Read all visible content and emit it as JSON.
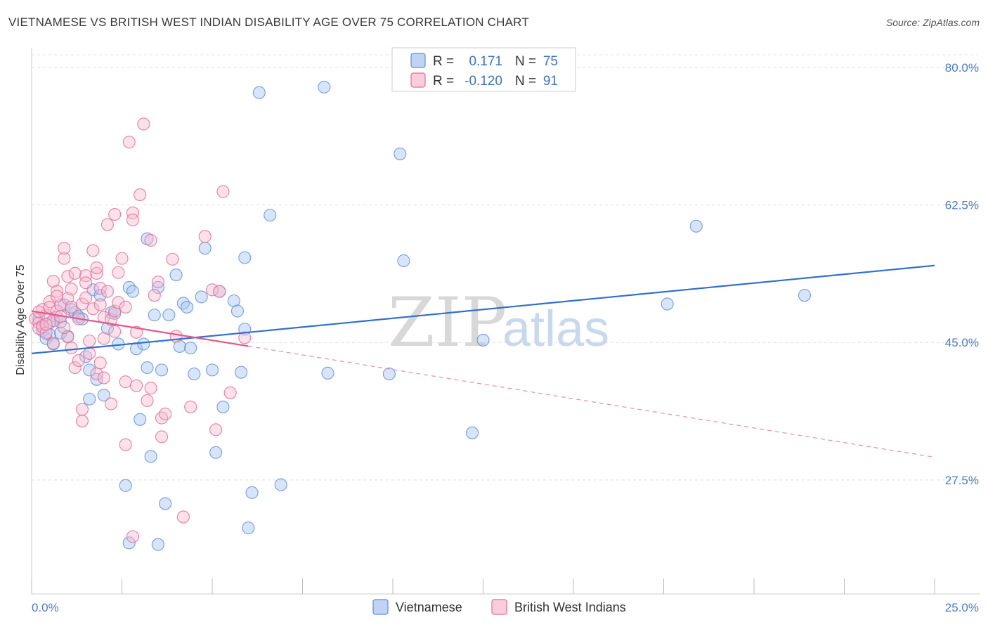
{
  "title": "VIETNAMESE VS BRITISH WEST INDIAN DISABILITY AGE OVER 75 CORRELATION CHART",
  "source": "Source: ZipAtlas.com",
  "watermark": {
    "zip": "ZIP",
    "atlas": "atlas"
  },
  "legend": {
    "r_label": "R =",
    "n_label": "N =",
    "rows": [
      {
        "r": "0.171",
        "n": "75",
        "color": "#8fb4ea"
      },
      {
        "r": "-0.120",
        "n": "91",
        "color": "#f4a7bf"
      }
    ]
  },
  "chart_data": {
    "type": "scatter",
    "title": "VIETNAMESE VS BRITISH WEST INDIAN DISABILITY AGE OVER 75 CORRELATION CHART",
    "xlabel": "",
    "ylabel": "Disability Age Over 75",
    "xlim": [
      0,
      25
    ],
    "ylim": [
      13,
      82.5
    ],
    "x_tick_labels": [
      "0.0%",
      "25.0%"
    ],
    "y_ticks": [
      27.5,
      45.0,
      62.5,
      80.0
    ],
    "y_tick_labels": [
      "27.5%",
      "45.0%",
      "62.5%",
      "80.0%"
    ],
    "grid": true,
    "legend_position": "top-center",
    "series": [
      {
        "name": "Vietnamese",
        "color": "#5b8fdc",
        "fill": "#a9c6f0",
        "r": 0.171,
        "n": 75,
        "trend": {
          "x": [
            0,
            25
          ],
          "y": [
            43.6,
            54.8
          ],
          "dashed_from": null
        },
        "points": [
          [
            0.2,
            48.0
          ],
          [
            0.3,
            47.2
          ],
          [
            0.3,
            46.5
          ],
          [
            0.4,
            45.5
          ],
          [
            0.5,
            46.0
          ],
          [
            0.6,
            44.8
          ],
          [
            0.7,
            48.2
          ],
          [
            0.8,
            47.6
          ],
          [
            0.9,
            49.8
          ],
          [
            1.0,
            45.8
          ],
          [
            1.1,
            49.2
          ],
          [
            1.2,
            48.8
          ],
          [
            1.3,
            48.3
          ],
          [
            1.4,
            48.0
          ],
          [
            1.5,
            43.2
          ],
          [
            1.6,
            41.5
          ],
          [
            1.6,
            37.8
          ],
          [
            1.7,
            51.7
          ],
          [
            1.8,
            40.3
          ],
          [
            1.9,
            51.0
          ],
          [
            2.0,
            38.3
          ],
          [
            2.1,
            46.8
          ],
          [
            2.2,
            48.8
          ],
          [
            2.3,
            48.7
          ],
          [
            2.4,
            44.8
          ],
          [
            2.6,
            26.8
          ],
          [
            2.7,
            19.5
          ],
          [
            2.7,
            52.0
          ],
          [
            2.8,
            51.5
          ],
          [
            2.9,
            44.2
          ],
          [
            3.0,
            35.2
          ],
          [
            3.1,
            44.8
          ],
          [
            3.2,
            41.8
          ],
          [
            3.2,
            58.2
          ],
          [
            3.3,
            30.5
          ],
          [
            3.4,
            48.5
          ],
          [
            3.5,
            52.0
          ],
          [
            3.5,
            19.3
          ],
          [
            3.6,
            41.5
          ],
          [
            3.7,
            24.5
          ],
          [
            3.8,
            48.5
          ],
          [
            4.0,
            53.6
          ],
          [
            4.1,
            44.5
          ],
          [
            4.2,
            50.0
          ],
          [
            4.3,
            49.5
          ],
          [
            4.4,
            44.3
          ],
          [
            4.5,
            41.0
          ],
          [
            4.7,
            50.8
          ],
          [
            4.8,
            57.0
          ],
          [
            5.0,
            41.5
          ],
          [
            5.1,
            31.0
          ],
          [
            5.2,
            51.5
          ],
          [
            5.3,
            36.8
          ],
          [
            5.6,
            50.3
          ],
          [
            5.7,
            49.0
          ],
          [
            5.8,
            41.2
          ],
          [
            5.9,
            46.7
          ],
          [
            5.9,
            55.8
          ],
          [
            6.0,
            21.4
          ],
          [
            6.1,
            25.9
          ],
          [
            6.3,
            76.8
          ],
          [
            6.6,
            61.2
          ],
          [
            6.9,
            26.9
          ],
          [
            8.1,
            77.5
          ],
          [
            8.2,
            41.1
          ],
          [
            9.9,
            41.0
          ],
          [
            10.2,
            69.0
          ],
          [
            10.3,
            55.4
          ],
          [
            12.2,
            33.5
          ],
          [
            12.5,
            45.3
          ],
          [
            17.6,
            49.9
          ],
          [
            18.4,
            59.8
          ],
          [
            21.4,
            51.0
          ],
          [
            0.5,
            47.5
          ],
          [
            0.8,
            46.2
          ]
        ]
      },
      {
        "name": "British West Indians",
        "color": "#e56b96",
        "fill": "#f7bccf",
        "r": -0.12,
        "n": 91,
        "trend": {
          "x": [
            0,
            25
          ],
          "y": [
            49.0,
            30.4
          ],
          "dashed_from": 6.0
        },
        "points": [
          [
            0.1,
            48.0
          ],
          [
            0.2,
            47.5
          ],
          [
            0.2,
            46.8
          ],
          [
            0.3,
            49.2
          ],
          [
            0.3,
            47.0
          ],
          [
            0.4,
            48.5
          ],
          [
            0.4,
            46.2
          ],
          [
            0.5,
            50.2
          ],
          [
            0.5,
            49.5
          ],
          [
            0.6,
            47.8
          ],
          [
            0.6,
            44.9
          ],
          [
            0.6,
            52.8
          ],
          [
            0.7,
            51.5
          ],
          [
            0.7,
            49.0
          ],
          [
            0.8,
            49.8
          ],
          [
            0.8,
            48.3
          ],
          [
            0.9,
            55.7
          ],
          [
            0.9,
            57.0
          ],
          [
            1.0,
            53.4
          ],
          [
            1.0,
            50.6
          ],
          [
            1.0,
            45.7
          ],
          [
            1.1,
            51.8
          ],
          [
            1.1,
            49.5
          ],
          [
            1.2,
            41.8
          ],
          [
            1.2,
            53.8
          ],
          [
            1.3,
            48.0
          ],
          [
            1.3,
            42.7
          ],
          [
            1.4,
            49.9
          ],
          [
            1.4,
            35.0
          ],
          [
            1.4,
            36.5
          ],
          [
            1.5,
            53.5
          ],
          [
            1.5,
            50.7
          ],
          [
            1.6,
            45.2
          ],
          [
            1.6,
            43.6
          ],
          [
            1.7,
            49.3
          ],
          [
            1.7,
            56.7
          ],
          [
            1.8,
            53.8
          ],
          [
            1.8,
            41.0
          ],
          [
            1.8,
            54.5
          ],
          [
            1.9,
            51.9
          ],
          [
            1.9,
            49.8
          ],
          [
            2.0,
            48.2
          ],
          [
            2.0,
            45.5
          ],
          [
            2.0,
            40.5
          ],
          [
            2.1,
            60.0
          ],
          [
            2.1,
            51.5
          ],
          [
            2.2,
            37.2
          ],
          [
            2.2,
            47.9
          ],
          [
            2.3,
            49.0
          ],
          [
            2.3,
            61.3
          ],
          [
            2.4,
            50.1
          ],
          [
            2.4,
            53.9
          ],
          [
            2.5,
            55.7
          ],
          [
            2.6,
            49.5
          ],
          [
            2.6,
            32.0
          ],
          [
            2.6,
            40.0
          ],
          [
            2.7,
            70.5
          ],
          [
            2.8,
            61.5
          ],
          [
            2.8,
            60.6
          ],
          [
            2.8,
            20.3
          ],
          [
            2.9,
            39.5
          ],
          [
            2.9,
            46.3
          ],
          [
            3.0,
            63.8
          ],
          [
            3.1,
            72.8
          ],
          [
            3.2,
            37.6
          ],
          [
            3.3,
            39.2
          ],
          [
            3.3,
            58.0
          ],
          [
            3.4,
            51.0
          ],
          [
            3.5,
            52.7
          ],
          [
            3.6,
            33.0
          ],
          [
            3.6,
            35.4
          ],
          [
            3.7,
            35.9
          ],
          [
            3.9,
            55.6
          ],
          [
            4.0,
            45.8
          ],
          [
            4.2,
            22.8
          ],
          [
            4.4,
            36.8
          ],
          [
            4.8,
            58.5
          ],
          [
            5.0,
            51.7
          ],
          [
            5.1,
            33.9
          ],
          [
            5.2,
            51.5
          ],
          [
            5.3,
            64.2
          ],
          [
            5.5,
            38.6
          ],
          [
            5.9,
            45.6
          ],
          [
            0.2,
            48.9
          ],
          [
            0.4,
            47.3
          ],
          [
            0.7,
            50.9
          ],
          [
            1.1,
            44.3
          ],
          [
            1.5,
            52.6
          ],
          [
            2.3,
            46.4
          ],
          [
            0.9,
            46.9
          ],
          [
            1.9,
            42.4
          ]
        ]
      }
    ]
  }
}
